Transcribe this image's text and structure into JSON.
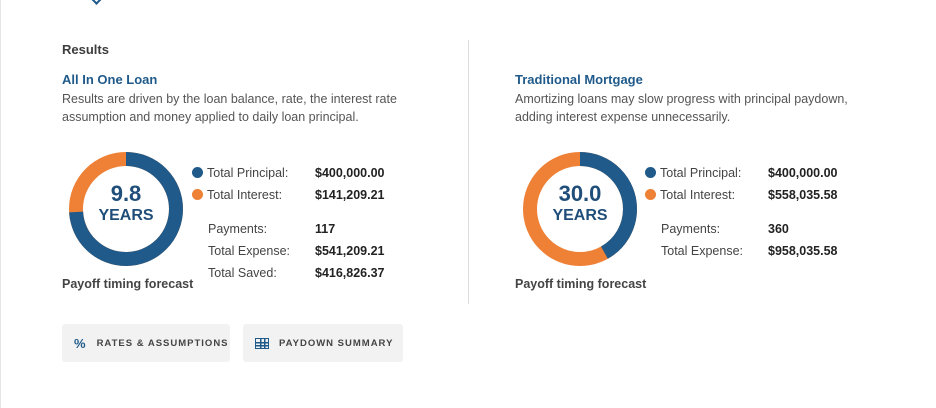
{
  "section_title": "Results",
  "colors": {
    "principal": "#1f5a8a",
    "interest": "#ee8136",
    "title": "#1f5a8a"
  },
  "all_in_one": {
    "title": "All In One Loan",
    "description": "Results are driven by the loan balance, rate, the interest rate assumption and money applied to daily loan principal.",
    "years_value": "9.8",
    "years_unit": "YEARS",
    "principal_fraction": 0.739,
    "interest_fraction": 0.261,
    "total_principal_label": "Total Principal:",
    "total_principal_value": "$400,000.00",
    "total_interest_label": "Total Interest:",
    "total_interest_value": "$141,209.21",
    "payments_label": "Payments:",
    "payments_value": "117",
    "total_expense_label": "Total Expense:",
    "total_expense_value": "$541,209.21",
    "total_saved_label": "Total Saved:",
    "total_saved_value": "$416,826.37",
    "caption": "Payoff timing forecast"
  },
  "traditional": {
    "title": "Traditional Mortgage",
    "description": "Amortizing loans may slow progress with principal paydown, adding interest expense unnecessarily.",
    "years_value": "30.0",
    "years_unit": "YEARS",
    "principal_fraction": 0.418,
    "interest_fraction": 0.582,
    "total_principal_label": "Total Principal:",
    "total_principal_value": "$400,000.00",
    "total_interest_label": "Total Interest:",
    "total_interest_value": "$558,035.58",
    "payments_label": "Payments:",
    "payments_value": "360",
    "total_expense_label": "Total Expense:",
    "total_expense_value": "$958,035.58",
    "caption": "Payoff timing forecast"
  },
  "buttons": {
    "rates_label": "RATES & ASSUMPTIONS",
    "rates_icon": "percent-icon",
    "paydown_label": "PAYDOWN SUMMARY",
    "paydown_icon": "table-icon"
  }
}
